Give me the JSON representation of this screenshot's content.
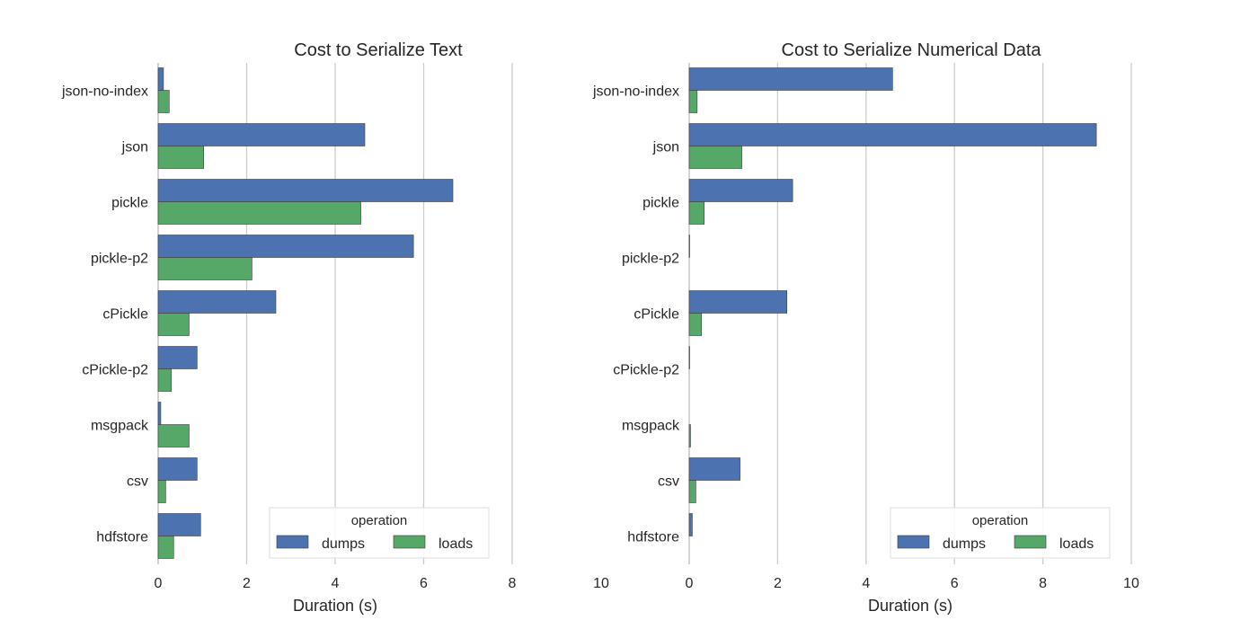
{
  "chart_data": [
    {
      "type": "bar",
      "orientation": "horizontal",
      "title": "Cost to Serialize Text",
      "xlabel": "Duration (s)",
      "ylabel": "",
      "xlim": [
        0,
        8
      ],
      "xticks": [
        0,
        2,
        4,
        6,
        8
      ],
      "categories": [
        "json-no-index",
        "json",
        "pickle",
        "pickle-p2",
        "cPickle",
        "cPickle-p2",
        "msgpack",
        "csv",
        "hdfstore"
      ],
      "series": [
        {
          "name": "dumps",
          "color": "#4c72b0",
          "values": [
            0.12,
            4.67,
            6.66,
            5.77,
            2.66,
            0.88,
            0.06,
            0.88,
            0.96
          ]
        },
        {
          "name": "loads",
          "color": "#55a868",
          "values": [
            0.25,
            1.03,
            4.58,
            2.12,
            0.7,
            0.3,
            0.7,
            0.17,
            0.35
          ]
        }
      ],
      "grid": true,
      "legend": {
        "title": "operation",
        "placement": "bottom-right"
      }
    },
    {
      "type": "bar",
      "orientation": "horizontal",
      "title": "Cost to Serialize Numerical Data",
      "xlabel": "Duration (s)",
      "ylabel": "",
      "xlim": [
        0,
        10
      ],
      "xticks": [
        0,
        2,
        4,
        6,
        8,
        10
      ],
      "categories": [
        "json-no-index",
        "json",
        "pickle",
        "pickle-p2",
        "cPickle",
        "cPickle-p2",
        "msgpack",
        "csv",
        "hdfstore"
      ],
      "series": [
        {
          "name": "dumps",
          "color": "#4c72b0",
          "values": [
            4.6,
            9.21,
            2.34,
            0.01,
            2.21,
            0.01,
            0.0,
            1.15,
            0.07
          ]
        },
        {
          "name": "loads",
          "color": "#55a868",
          "values": [
            0.18,
            1.19,
            0.34,
            0.0,
            0.28,
            0.0,
            0.03,
            0.15,
            0.0
          ]
        }
      ],
      "grid": true,
      "legend": {
        "title": "operation",
        "placement": "bottom-right"
      }
    }
  ],
  "extra_tick_label": "10"
}
